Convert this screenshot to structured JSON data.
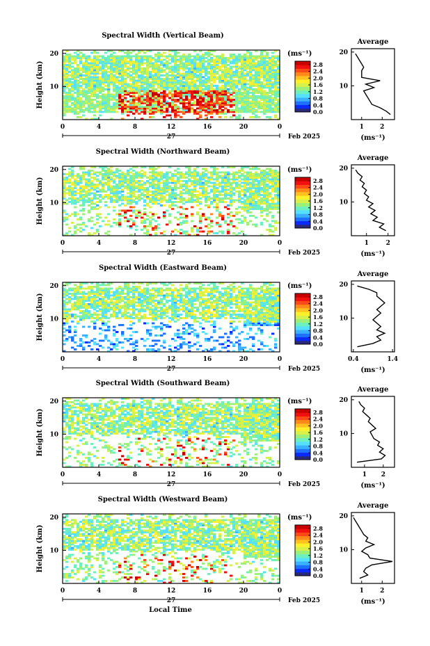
{
  "chart_data": [
    {
      "type": "heatmap",
      "title": "Spectral Width (Vertical Beam)",
      "ylabel": "Height (km)",
      "yticks": [
        "20",
        "10"
      ],
      "xticks": [
        "0",
        "4",
        "8",
        "12",
        "16",
        "20",
        "0"
      ],
      "date_label": "27",
      "month_label": "Feb 2025",
      "cbar_unit": "(ms⁻¹)",
      "cbar_ticks": [
        "2.8",
        "2.4",
        "2.0",
        "1.6",
        "1.2",
        "0.8",
        "0.4",
        "0.0"
      ],
      "ylim": [
        0,
        21
      ],
      "xlim": [
        0,
        24
      ],
      "zlim": [
        0,
        3.0
      ],
      "avg": {
        "title": "Average",
        "xlabel": "(ms⁻¹)",
        "yticks": [
          "20",
          "10"
        ],
        "xticks": [
          "1",
          "2"
        ],
        "xlim": [
          0.5,
          2.6
        ],
        "ylim": [
          0,
          21
        ],
        "profile": [
          [
            2.4,
            1.5
          ],
          [
            2.2,
            2.5
          ],
          [
            1.9,
            3.5
          ],
          [
            1.5,
            4.5
          ],
          [
            1.4,
            5.5
          ],
          [
            1.3,
            6.5
          ],
          [
            1.2,
            7.5
          ],
          [
            1.1,
            8.5
          ],
          [
            1.6,
            9.5
          ],
          [
            1.2,
            10.5
          ],
          [
            1.9,
            11.5
          ],
          [
            1.0,
            12.5
          ],
          [
            1.0,
            13.5
          ],
          [
            1.0,
            14.5
          ],
          [
            1.1,
            15.5
          ],
          [
            1.0,
            16.5
          ],
          [
            0.9,
            17.5
          ],
          [
            0.8,
            18.5
          ],
          [
            0.7,
            19.5
          ]
        ]
      }
    },
    {
      "type": "heatmap",
      "title": "Spectral Width (Northward Beam)",
      "ylabel": "Height (km)",
      "yticks": [
        "20",
        "10"
      ],
      "xticks": [
        "0",
        "4",
        "8",
        "12",
        "16",
        "20",
        "0"
      ],
      "date_label": "27",
      "month_label": "Feb 2025",
      "cbar_unit": "(ms⁻¹)",
      "cbar_ticks": [
        "2.8",
        "2.4",
        "2.0",
        "1.6",
        "1.2",
        "0.8",
        "0.4",
        "0.0"
      ],
      "ylim": [
        0,
        21
      ],
      "xlim": [
        0,
        24
      ],
      "zlim": [
        0,
        3.0
      ],
      "avg": {
        "title": "Average",
        "xlabel": "(ms⁻¹)",
        "yticks": [
          "20",
          "10"
        ],
        "xticks": [
          "1",
          "2"
        ],
        "xlim": [
          0.3,
          2.3
        ],
        "ylim": [
          0,
          21
        ],
        "profile": [
          [
            1.9,
            1.5
          ],
          [
            1.6,
            2.5
          ],
          [
            1.8,
            3.5
          ],
          [
            1.3,
            4.5
          ],
          [
            1.5,
            5.5
          ],
          [
            1.2,
            6.5
          ],
          [
            1.4,
            7.5
          ],
          [
            1.1,
            8.5
          ],
          [
            1.3,
            9.5
          ],
          [
            1.0,
            10.5
          ],
          [
            1.1,
            11.5
          ],
          [
            0.9,
            12.5
          ],
          [
            1.0,
            13.5
          ],
          [
            0.8,
            14.5
          ],
          [
            0.9,
            15.5
          ],
          [
            0.7,
            16.5
          ],
          [
            0.8,
            17.5
          ],
          [
            0.6,
            18.5
          ],
          [
            0.5,
            19.5
          ]
        ]
      }
    },
    {
      "type": "heatmap",
      "title": "Spectral Width (Eastward Beam)",
      "ylabel": "Height (km)",
      "yticks": [
        "20",
        "10"
      ],
      "xticks": [
        "0",
        "4",
        "8",
        "12",
        "16",
        "20",
        "0"
      ],
      "date_label": "27",
      "month_label": "Feb 2025",
      "cbar_unit": "(ms⁻¹)",
      "cbar_ticks": [
        "2.8",
        "2.4",
        "2.0",
        "1.6",
        "1.2",
        "0.8",
        "0.4",
        "0.0"
      ],
      "ylim": [
        0,
        21
      ],
      "xlim": [
        0,
        24
      ],
      "zlim": [
        0,
        3.0
      ],
      "avg": {
        "title": "Average",
        "xlabel": "(ms⁻¹)",
        "yticks": [
          "20",
          "10"
        ],
        "xticks": [
          "0.4",
          "1.4"
        ],
        "xlim": [
          0.35,
          1.45
        ],
        "ylim": [
          0,
          21
        ],
        "profile": [
          [
            0.5,
            1.5
          ],
          [
            0.9,
            2.5
          ],
          [
            1.1,
            3.5
          ],
          [
            1.0,
            4.5
          ],
          [
            1.2,
            5.5
          ],
          [
            1.0,
            6.5
          ],
          [
            1.1,
            7.5
          ],
          [
            1.0,
            8.5
          ],
          [
            0.9,
            9.5
          ],
          [
            1.0,
            10.5
          ],
          [
            1.1,
            11.5
          ],
          [
            1.0,
            12.5
          ],
          [
            1.1,
            13.5
          ],
          [
            1.2,
            14.5
          ],
          [
            1.1,
            15.5
          ],
          [
            1.0,
            16.5
          ],
          [
            1.0,
            17.5
          ],
          [
            0.8,
            18.5
          ],
          [
            0.5,
            19.5
          ]
        ]
      }
    },
    {
      "type": "heatmap",
      "title": "Spectral Width (Southward Beam)",
      "ylabel": "Height (km)",
      "yticks": [
        "20",
        "10"
      ],
      "xticks": [
        "0",
        "4",
        "8",
        "12",
        "16",
        "20",
        "0"
      ],
      "date_label": "27",
      "month_label": "Feb 2025",
      "cbar_unit": "(ms⁻¹)",
      "cbar_ticks": [
        "2.8",
        "2.4",
        "2.0",
        "1.6",
        "1.2",
        "0.8",
        "0.4",
        "0.0"
      ],
      "ylim": [
        0,
        21
      ],
      "xlim": [
        0,
        24
      ],
      "zlim": [
        0,
        3.0
      ],
      "avg": {
        "title": "Average",
        "xlabel": "(ms⁻¹)",
        "yticks": [
          "20",
          "10"
        ],
        "xticks": [
          "1",
          "2"
        ],
        "xlim": [
          0.3,
          2.6
        ],
        "ylim": [
          0,
          21
        ],
        "profile": [
          [
            0.6,
            1.5
          ],
          [
            1.9,
            2.5
          ],
          [
            2.1,
            3.5
          ],
          [
            1.8,
            4.5
          ],
          [
            2.0,
            5.5
          ],
          [
            1.7,
            6.5
          ],
          [
            1.8,
            7.5
          ],
          [
            1.5,
            8.5
          ],
          [
            1.4,
            9.5
          ],
          [
            1.3,
            10.5
          ],
          [
            1.6,
            11.5
          ],
          [
            1.4,
            12.5
          ],
          [
            1.2,
            13.5
          ],
          [
            1.3,
            14.5
          ],
          [
            1.1,
            15.5
          ],
          [
            0.9,
            16.5
          ],
          [
            1.0,
            17.5
          ],
          [
            0.8,
            18.5
          ],
          [
            0.7,
            19.5
          ]
        ]
      }
    },
    {
      "type": "heatmap",
      "title": "Spectral Width (Westward Beam)",
      "ylabel": "Height (km)",
      "yticks": [
        "20",
        "10"
      ],
      "xticks": [
        "0",
        "4",
        "8",
        "12",
        "16",
        "20",
        "0"
      ],
      "date_label": "27",
      "month_label": "Feb 2025",
      "cbar_unit": "(ms⁻¹)",
      "cbar_ticks": [
        "2.8",
        "2.4",
        "2.0",
        "1.6",
        "1.2",
        "0.8",
        "0.4",
        "0.0"
      ],
      "ylim": [
        0,
        21
      ],
      "xlim": [
        0,
        24
      ],
      "zlim": [
        0,
        3.0
      ],
      "avg": {
        "title": "Average",
        "xlabel": "(ms⁻¹)",
        "yticks": [
          "20",
          "10"
        ],
        "xticks": [
          "1",
          "2"
        ],
        "xlim": [
          0.5,
          2.6
        ],
        "ylim": [
          0,
          21
        ],
        "profile": [
          [
            0.9,
            1.5
          ],
          [
            1.3,
            2.5
          ],
          [
            1.1,
            3.5
          ],
          [
            1.2,
            4.5
          ],
          [
            1.5,
            5.5
          ],
          [
            2.5,
            6.5
          ],
          [
            1.4,
            7.5
          ],
          [
            1.3,
            8.5
          ],
          [
            1.0,
            9.5
          ],
          [
            1.2,
            10.5
          ],
          [
            1.6,
            11.5
          ],
          [
            1.2,
            12.5
          ],
          [
            1.3,
            13.5
          ],
          [
            1.1,
            14.5
          ],
          [
            1.0,
            15.5
          ],
          [
            0.9,
            16.5
          ],
          [
            0.8,
            17.5
          ],
          [
            0.7,
            18.5
          ],
          [
            0.6,
            19.5
          ]
        ]
      }
    }
  ],
  "xlabel": "Local Time",
  "colormap": [
    "#2a2a7a",
    "#0a2aff",
    "#1e70ff",
    "#3ab0ff",
    "#55e0ff",
    "#6cf0c0",
    "#9cf07a",
    "#d8f04a",
    "#fff02a",
    "#ffc020",
    "#ff8a1a",
    "#ff4a18",
    "#f01010",
    "#c80000"
  ]
}
